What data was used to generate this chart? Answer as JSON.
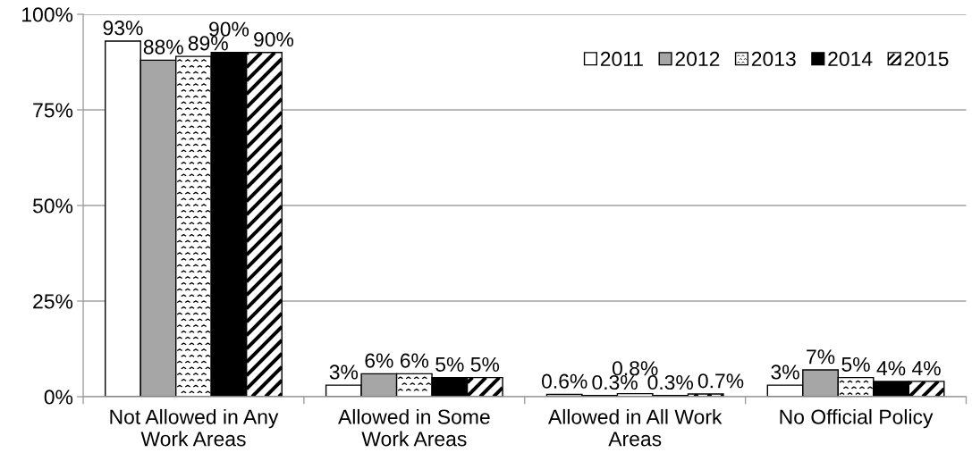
{
  "chart_data": {
    "type": "bar",
    "categories": [
      "Not Allowed in Any Work Areas",
      "Allowed in Some Work Areas",
      "Allowed in All Work Areas",
      "No Official Policy"
    ],
    "series": [
      {
        "name": "2011",
        "color": "#ffffff",
        "values": [
          93,
          3,
          0.6,
          3
        ],
        "value_labels": [
          "93%",
          "3%",
          "0.6%",
          "3%"
        ]
      },
      {
        "name": "2012",
        "color": "#a6a6a6",
        "values": [
          88,
          6,
          0.3,
          7
        ],
        "value_labels": [
          "88%",
          "6%",
          "0.3%",
          "7%"
        ]
      },
      {
        "name": "2013",
        "color": "#ffffff",
        "values": [
          89,
          6,
          0.8,
          5
        ],
        "value_labels": [
          "89%",
          "6%",
          "0.8%",
          "5%"
        ]
      },
      {
        "name": "2014",
        "color": "#000000",
        "values": [
          90,
          5,
          0.3,
          4
        ],
        "value_labels": [
          "90%",
          "5%",
          "0.3%",
          "4%"
        ]
      },
      {
        "name": "2015",
        "color": "#ffffff",
        "values": [
          90,
          5,
          0.7,
          4
        ],
        "value_labels": [
          "90%",
          "5%",
          "0.7%",
          "4%"
        ]
      }
    ],
    "ylim": [
      0,
      100
    ],
    "yticks": [
      {
        "value": 0,
        "label": "0%"
      },
      {
        "value": 25,
        "label": "25%"
      },
      {
        "value": 50,
        "label": "50%"
      },
      {
        "value": 75,
        "label": "75%"
      },
      {
        "value": 100,
        "label": "100%"
      }
    ],
    "grid": "y",
    "legend": "top right"
  }
}
